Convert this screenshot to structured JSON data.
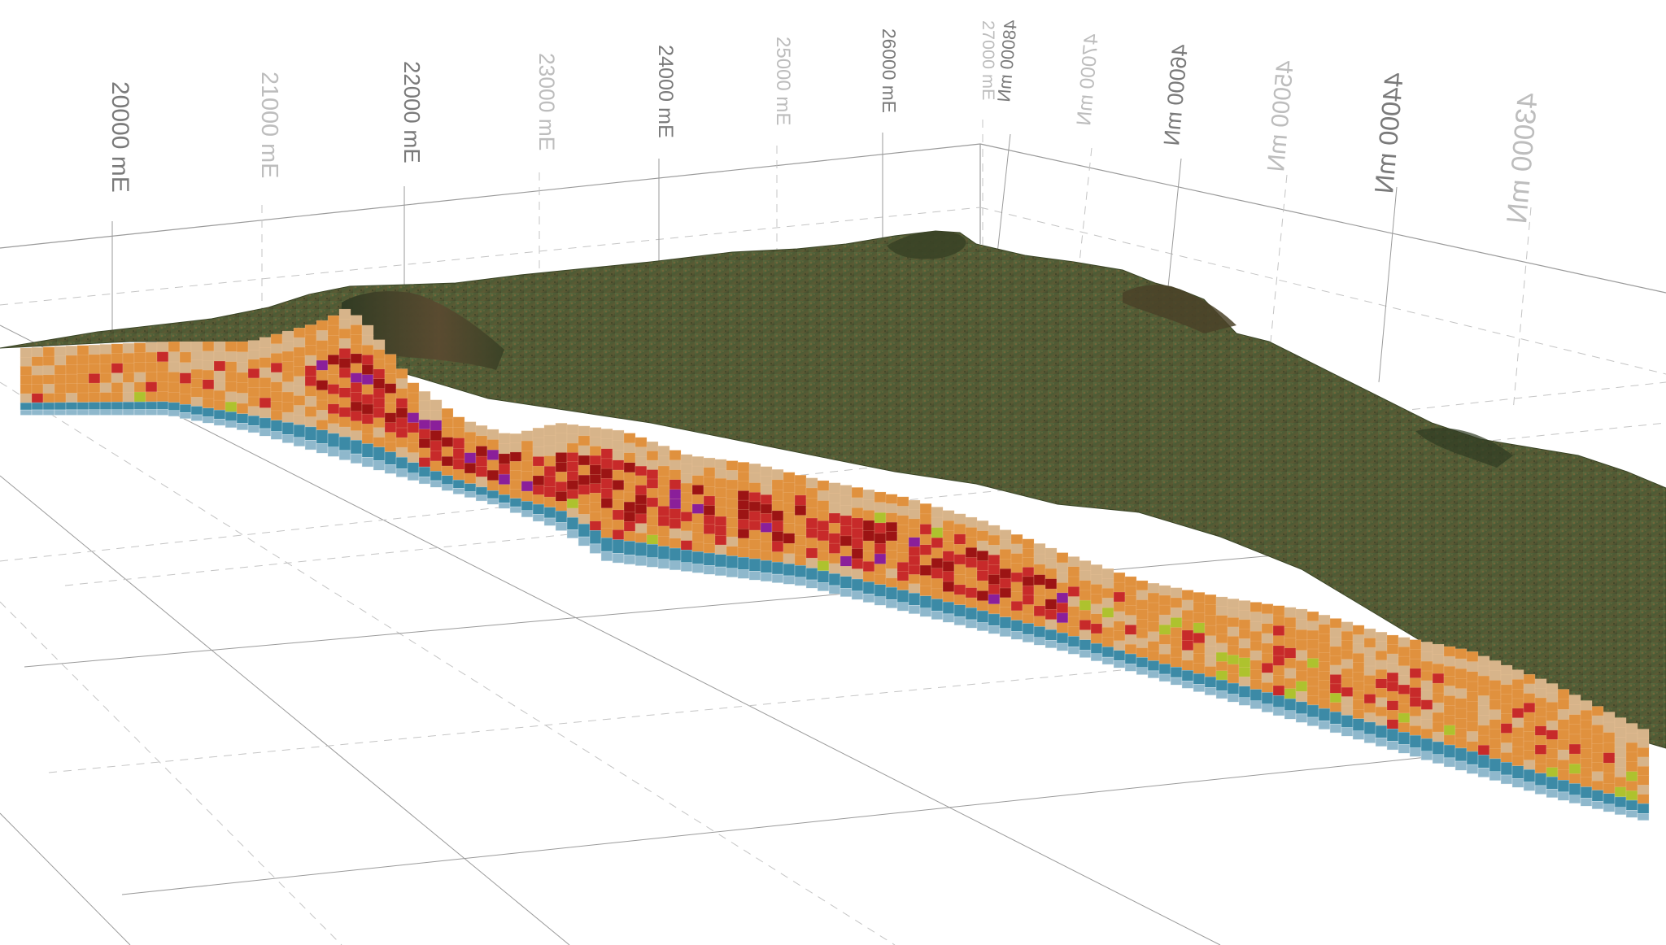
{
  "viewer": {
    "easting_labels": [
      {
        "text": "20000 mE",
        "major": true
      },
      {
        "text": "21000 mE",
        "major": false
      },
      {
        "text": "22000 mE",
        "major": true
      },
      {
        "text": "23000 mE",
        "major": false
      },
      {
        "text": "24000 mE",
        "major": true
      },
      {
        "text": "25000 mE",
        "major": false
      },
      {
        "text": "26000 mE",
        "major": true
      },
      {
        "text": "27000 mE",
        "major": false
      }
    ],
    "northing_labels": [
      {
        "text": "48000 mN",
        "major": true
      },
      {
        "text": "47000 mN",
        "major": false
      },
      {
        "text": "46000 mN",
        "major": true
      },
      {
        "text": "45000 mN",
        "major": false
      },
      {
        "text": "44000 mN",
        "major": true
      },
      {
        "text": "43000 mN",
        "major": false
      }
    ],
    "colors": {
      "background": "#ffffff",
      "grid_major": "#9a9a9a",
      "grid_minor": "#c4c4c4",
      "label_major": "#7a7a7a",
      "label_minor": "#bdbdbd",
      "terrain": "#4f5f38",
      "terrain_dark": "#3e4a2c",
      "terrain_rust": "#8a6a3c",
      "block_orange": "#e0913e",
      "block_tan": "#d7b48a",
      "block_red": "#c72a2a",
      "block_darkred": "#9c1414",
      "block_purple": "#8a1f9a",
      "block_lime": "#aec22e",
      "block_blue": "#3c8aa6",
      "block_lightblue": "#8fb8cc"
    }
  }
}
